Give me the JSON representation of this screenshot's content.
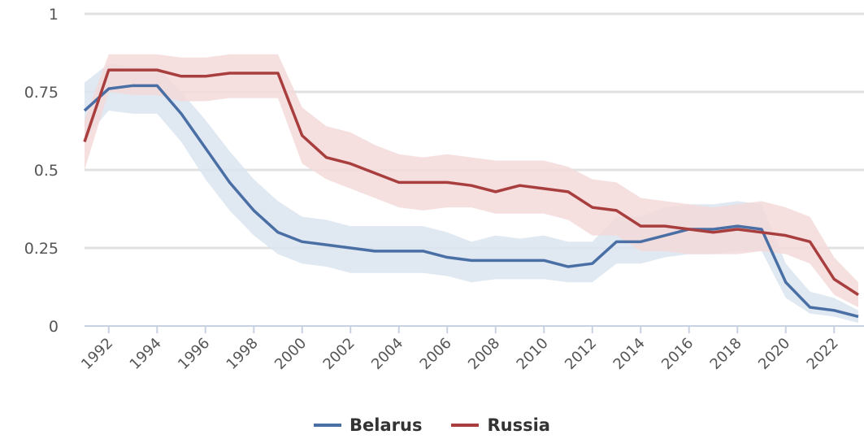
{
  "chart_data": {
    "type": "line",
    "x": [
      1991,
      1992,
      1993,
      1994,
      1995,
      1996,
      1997,
      1998,
      1999,
      2000,
      2001,
      2002,
      2003,
      2004,
      2005,
      2006,
      2007,
      2008,
      2009,
      2010,
      2011,
      2012,
      2013,
      2014,
      2015,
      2016,
      2017,
      2018,
      2019,
      2020,
      2021,
      2022,
      2023
    ],
    "x_ticks": [
      "1992",
      "1994",
      "1996",
      "1998",
      "2000",
      "2002",
      "2004",
      "2006",
      "2008",
      "2010",
      "2012",
      "2014",
      "2016",
      "2018",
      "2020",
      "2022"
    ],
    "y_ticks": [
      "0",
      "0.25",
      "0.5",
      "0.75",
      "1"
    ],
    "ylim": [
      0,
      1
    ],
    "xlim": [
      1991,
      2023
    ],
    "grid": true,
    "legend_position": "bottom",
    "series": [
      {
        "name": "Belarus",
        "color": "#4a6fa5",
        "band_color": "#dbe4f0",
        "values": [
          0.69,
          0.76,
          0.77,
          0.77,
          0.68,
          0.57,
          0.46,
          0.37,
          0.3,
          0.27,
          0.26,
          0.25,
          0.24,
          0.24,
          0.24,
          0.22,
          0.21,
          0.21,
          0.21,
          0.21,
          0.19,
          0.2,
          0.27,
          0.27,
          0.29,
          0.31,
          0.31,
          0.32,
          0.31,
          0.14,
          0.06,
          0.05,
          0.03
        ],
        "upper": [
          0.78,
          0.84,
          0.83,
          0.83,
          0.75,
          0.66,
          0.56,
          0.47,
          0.4,
          0.35,
          0.34,
          0.32,
          0.32,
          0.32,
          0.32,
          0.3,
          0.27,
          0.29,
          0.28,
          0.29,
          0.27,
          0.27,
          0.35,
          0.35,
          0.38,
          0.39,
          0.39,
          0.4,
          0.39,
          0.2,
          0.11,
          0.09,
          0.05
        ],
        "lower": [
          0.6,
          0.69,
          0.68,
          0.68,
          0.59,
          0.47,
          0.37,
          0.29,
          0.23,
          0.2,
          0.19,
          0.17,
          0.17,
          0.17,
          0.17,
          0.16,
          0.14,
          0.15,
          0.15,
          0.15,
          0.14,
          0.14,
          0.2,
          0.2,
          0.22,
          0.23,
          0.23,
          0.24,
          0.24,
          0.09,
          0.04,
          0.03,
          0.01
        ]
      },
      {
        "name": "Russia",
        "color": "#a83e3e",
        "band_color": "#f3d9d9",
        "values": [
          0.59,
          0.82,
          0.82,
          0.82,
          0.8,
          0.8,
          0.81,
          0.81,
          0.81,
          0.61,
          0.54,
          0.52,
          0.49,
          0.46,
          0.46,
          0.46,
          0.45,
          0.43,
          0.45,
          0.44,
          0.43,
          0.38,
          0.37,
          0.32,
          0.32,
          0.31,
          0.3,
          0.31,
          0.3,
          0.29,
          0.27,
          0.15,
          0.1
        ],
        "upper": [
          0.66,
          0.87,
          0.87,
          0.87,
          0.86,
          0.86,
          0.87,
          0.87,
          0.87,
          0.7,
          0.64,
          0.62,
          0.58,
          0.55,
          0.54,
          0.55,
          0.54,
          0.53,
          0.53,
          0.53,
          0.51,
          0.47,
          0.46,
          0.41,
          0.4,
          0.39,
          0.38,
          0.39,
          0.4,
          0.38,
          0.35,
          0.22,
          0.14
        ],
        "lower": [
          0.5,
          0.75,
          0.74,
          0.74,
          0.72,
          0.72,
          0.73,
          0.73,
          0.73,
          0.52,
          0.47,
          0.44,
          0.41,
          0.38,
          0.37,
          0.38,
          0.38,
          0.36,
          0.36,
          0.36,
          0.34,
          0.29,
          0.29,
          0.24,
          0.24,
          0.23,
          0.23,
          0.23,
          0.24,
          0.23,
          0.2,
          0.1,
          0.06
        ]
      }
    ]
  }
}
